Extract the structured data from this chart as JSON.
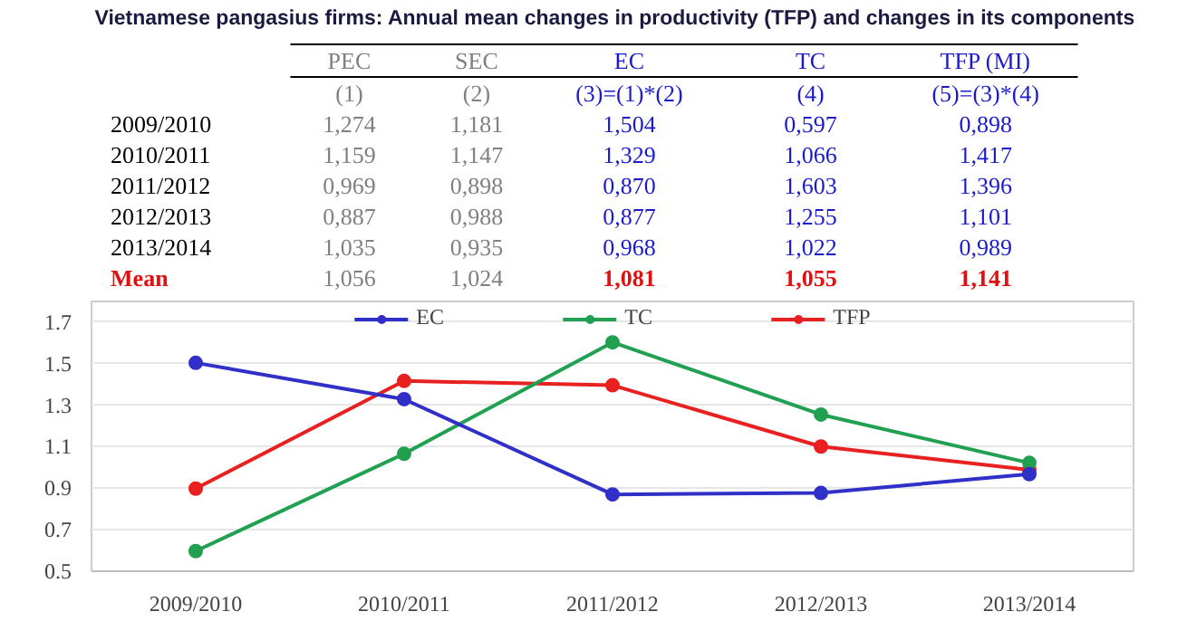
{
  "chart_data": [
    {
      "type": "other",
      "title": "Vietnamese pangasius firms: Annual mean changes in productivity (TFP) and changes in its components",
      "categories": [
        "PEC",
        "SEC",
        "EC",
        "TC",
        "TFP (MI)"
      ],
      "y_categories": [
        null,
        "2009/2010",
        "2010/2011",
        "2011/2012",
        "2012/2013",
        "2013/2014",
        "Mean"
      ],
      "cell_labels": [
        [
          "(1)",
          "(2)",
          "(3)=(1)*(2)",
          "(4)",
          "(5)=(3)*(4)"
        ],
        [
          "1,274",
          "1,181",
          "1,504",
          "0,597",
          "0,898"
        ],
        [
          "1,159",
          "1,147",
          "1,329",
          "1,066",
          "1,417"
        ],
        [
          "0,969",
          "0,898",
          "0,870",
          "1,603",
          "1,396"
        ],
        [
          "0,887",
          "0,988",
          "0,877",
          "1,255",
          "1,101"
        ],
        [
          "1,035",
          "0,935",
          "0,968",
          "1,022",
          "0,989"
        ],
        [
          "1,056",
          "1,024",
          "1,081",
          "1,055",
          "1,141"
        ]
      ]
    },
    {
      "type": "line",
      "categories": [
        "2009/2010",
        "2010/2011",
        "2011/2012",
        "2012/2013",
        "2013/2014"
      ],
      "series": [
        {
          "name": "EC",
          "color": "#3030c8",
          "values": [
            1.504,
            1.329,
            0.87,
            0.877,
            0.968
          ]
        },
        {
          "name": "TC",
          "color": "#20a050",
          "values": [
            0.597,
            1.066,
            1.603,
            1.255,
            1.022
          ]
        },
        {
          "name": "TFP",
          "color": "#e82020",
          "values": [
            0.898,
            1.417,
            1.396,
            1.101,
            0.989
          ]
        }
      ],
      "ylim": [
        0.5,
        1.8
      ],
      "yticks": [
        {
          "value": 0.5,
          "label": "0.5"
        },
        {
          "value": 0.7,
          "label": "0.7"
        },
        {
          "value": 0.9,
          "label": "0.9"
        },
        {
          "value": 1.1,
          "label": "1.1"
        },
        {
          "value": 1.3,
          "label": "1.3"
        },
        {
          "value": 1.5,
          "label": "1.5"
        },
        {
          "value": 1.7,
          "label": "1.7"
        }
      ],
      "grid": "y",
      "legend": "top",
      "marker": "circle",
      "line_style": "solid"
    }
  ]
}
